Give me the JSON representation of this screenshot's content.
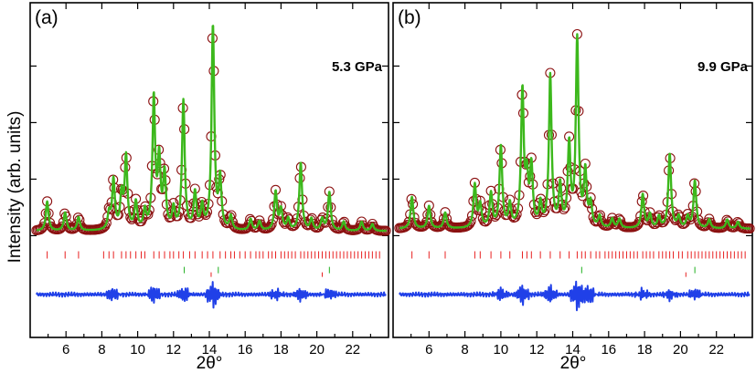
{
  "figure": {
    "ylabel": "Intensity (arb. units)",
    "xlabel": "2θ°"
  },
  "chart_data": [
    {
      "type": "line",
      "panel_label": "(a)",
      "pressure_label": "5.3 GPa",
      "xlabel": "2θ°",
      "ylabel": "Intensity (arb. units)",
      "xlim": [
        4.0,
        24.0
      ],
      "ylim": [
        -0.45,
        1.03
      ],
      "xticks": [
        6,
        8,
        10,
        12,
        14,
        16,
        18,
        20,
        22
      ],
      "tick_labels": [
        "6",
        "8",
        "10",
        "12",
        "14",
        "16",
        "18",
        "20",
        "22"
      ],
      "yticks": [
        0.0,
        0.25,
        0.5,
        0.75
      ],
      "background": 0.02,
      "peak_width": 0.09,
      "peaks": [
        {
          "pos": 4.95,
          "h": 0.13
        },
        {
          "pos": 5.95,
          "h": 0.08
        },
        {
          "pos": 6.7,
          "h": 0.06
        },
        {
          "pos": 8.4,
          "h": 0.07
        },
        {
          "pos": 8.65,
          "h": 0.22
        },
        {
          "pos": 9.1,
          "h": 0.15
        },
        {
          "pos": 9.35,
          "h": 0.32
        },
        {
          "pos": 9.9,
          "h": 0.12
        },
        {
          "pos": 10.4,
          "h": 0.08
        },
        {
          "pos": 10.9,
          "h": 0.58
        },
        {
          "pos": 11.2,
          "h": 0.3
        },
        {
          "pos": 11.5,
          "h": 0.24
        },
        {
          "pos": 12.0,
          "h": 0.09
        },
        {
          "pos": 12.55,
          "h": 0.57
        },
        {
          "pos": 13.2,
          "h": 0.16
        },
        {
          "pos": 13.6,
          "h": 0.1
        },
        {
          "pos": 14.2,
          "h": 0.9
        },
        {
          "pos": 14.6,
          "h": 0.22
        },
        {
          "pos": 15.2,
          "h": 0.06
        },
        {
          "pos": 16.3,
          "h": 0.05
        },
        {
          "pos": 16.8,
          "h": 0.04
        },
        {
          "pos": 17.7,
          "h": 0.17
        },
        {
          "pos": 18.0,
          "h": 0.09
        },
        {
          "pos": 18.4,
          "h": 0.05
        },
        {
          "pos": 19.1,
          "h": 0.3
        },
        {
          "pos": 19.7,
          "h": 0.05
        },
        {
          "pos": 20.3,
          "h": 0.05
        },
        {
          "pos": 20.7,
          "h": 0.17
        },
        {
          "pos": 21.5,
          "h": 0.04
        },
        {
          "pos": 22.5,
          "h": 0.04
        },
        {
          "pos": 23.1,
          "h": 0.03
        }
      ],
      "bragg_phase1": [
        4.95,
        5.95,
        6.7,
        8.1,
        8.4,
        8.65,
        9.1,
        9.35,
        9.6,
        9.9,
        10.2,
        10.4,
        10.9,
        11.2,
        11.5,
        11.8,
        12.0,
        12.3,
        12.55,
        12.9,
        13.2,
        13.6,
        13.9,
        14.2,
        14.6,
        14.9,
        15.2,
        15.4,
        15.7,
        16.0,
        16.3,
        16.6,
        16.8,
        17.0,
        17.3,
        17.5,
        17.7,
        18.0,
        18.2,
        18.4,
        18.6,
        18.8,
        19.1,
        19.3,
        19.5,
        19.7,
        19.9,
        20.1,
        20.3,
        20.5,
        20.7,
        20.9,
        21.1,
        21.3,
        21.5,
        21.7,
        21.9,
        22.1,
        22.3,
        22.5,
        22.7,
        22.9,
        23.1,
        23.3,
        23.5
      ],
      "bragg_phase2": [
        12.6,
        14.5,
        20.7
      ],
      "bragg_phase2_marker": [
        14.1,
        20.3
      ],
      "diff_noise": [
        {
          "center": 8.6,
          "amp": 0.03
        },
        {
          "center": 10.9,
          "amp": 0.04
        },
        {
          "center": 12.6,
          "amp": 0.035
        },
        {
          "center": 14.2,
          "amp": 0.06
        },
        {
          "center": 17.7,
          "amp": 0.025
        },
        {
          "center": 19.1,
          "amp": 0.03
        },
        {
          "center": 20.7,
          "amp": 0.025
        }
      ]
    },
    {
      "type": "line",
      "panel_label": "(b)",
      "pressure_label": "9.9 GPa",
      "xlabel": "2θ°",
      "ylabel": "Intensity (arb. units)",
      "xlim": [
        4.0,
        24.0
      ],
      "ylim": [
        -0.45,
        1.03
      ],
      "xticks": [
        6,
        8,
        10,
        12,
        14,
        16,
        18,
        20,
        22
      ],
      "tick_labels": [
        "6",
        "8",
        "10",
        "12",
        "14",
        "16",
        "18",
        "20",
        "22"
      ],
      "yticks": [
        0.0,
        0.25,
        0.5,
        0.75
      ],
      "background": 0.03,
      "peak_width": 0.09,
      "peaks": [
        {
          "pos": 5.05,
          "h": 0.14
        },
        {
          "pos": 6.0,
          "h": 0.1
        },
        {
          "pos": 6.9,
          "h": 0.07
        },
        {
          "pos": 8.55,
          "h": 0.19
        },
        {
          "pos": 8.85,
          "h": 0.1
        },
        {
          "pos": 9.45,
          "h": 0.15
        },
        {
          "pos": 10.0,
          "h": 0.36
        },
        {
          "pos": 10.5,
          "h": 0.1
        },
        {
          "pos": 11.2,
          "h": 0.6
        },
        {
          "pos": 11.45,
          "h": 0.2
        },
        {
          "pos": 11.7,
          "h": 0.26
        },
        {
          "pos": 12.2,
          "h": 0.1
        },
        {
          "pos": 12.75,
          "h": 0.67
        },
        {
          "pos": 13.3,
          "h": 0.18
        },
        {
          "pos": 13.8,
          "h": 0.36
        },
        {
          "pos": 14.25,
          "h": 0.83
        },
        {
          "pos": 14.7,
          "h": 0.24
        },
        {
          "pos": 15.0,
          "h": 0.1
        },
        {
          "pos": 15.5,
          "h": 0.05
        },
        {
          "pos": 16.2,
          "h": 0.04
        },
        {
          "pos": 16.6,
          "h": 0.04
        },
        {
          "pos": 17.9,
          "h": 0.15
        },
        {
          "pos": 18.3,
          "h": 0.06
        },
        {
          "pos": 18.8,
          "h": 0.05
        },
        {
          "pos": 19.4,
          "h": 0.33
        },
        {
          "pos": 19.9,
          "h": 0.05
        },
        {
          "pos": 20.4,
          "h": 0.05
        },
        {
          "pos": 20.8,
          "h": 0.21
        },
        {
          "pos": 21.6,
          "h": 0.04
        },
        {
          "pos": 22.6,
          "h": 0.04
        },
        {
          "pos": 23.2,
          "h": 0.03
        }
      ],
      "bragg_phase1": [
        5.05,
        6.0,
        6.9,
        8.55,
        8.85,
        9.45,
        10.0,
        10.5,
        11.2,
        11.45,
        11.7,
        12.2,
        12.75,
        13.3,
        13.8,
        14.25,
        14.5,
        14.7,
        15.0,
        15.3,
        15.5,
        15.8,
        16.0,
        16.2,
        16.4,
        16.6,
        16.8,
        17.0,
        17.2,
        17.4,
        17.6,
        17.9,
        18.1,
        18.3,
        18.5,
        18.8,
        19.0,
        19.2,
        19.4,
        19.6,
        19.9,
        20.1,
        20.4,
        20.6,
        20.8,
        21.0,
        21.2,
        21.4,
        21.6,
        21.8,
        22.0,
        22.2,
        22.4,
        22.6,
        22.8,
        23.0,
        23.2,
        23.4,
        23.6
      ],
      "bragg_phase2": [
        14.5,
        20.8
      ],
      "bragg_phase2_marker": [
        20.3
      ],
      "diff_noise": [
        {
          "center": 10.0,
          "amp": 0.03
        },
        {
          "center": 11.2,
          "amp": 0.045
        },
        {
          "center": 12.75,
          "amp": 0.04
        },
        {
          "center": 14.25,
          "amp": 0.07
        },
        {
          "center": 14.9,
          "amp": 0.045
        },
        {
          "center": 17.9,
          "amp": 0.025
        },
        {
          "center": 19.4,
          "amp": 0.025
        },
        {
          "center": 20.8,
          "amp": 0.025
        }
      ]
    }
  ]
}
